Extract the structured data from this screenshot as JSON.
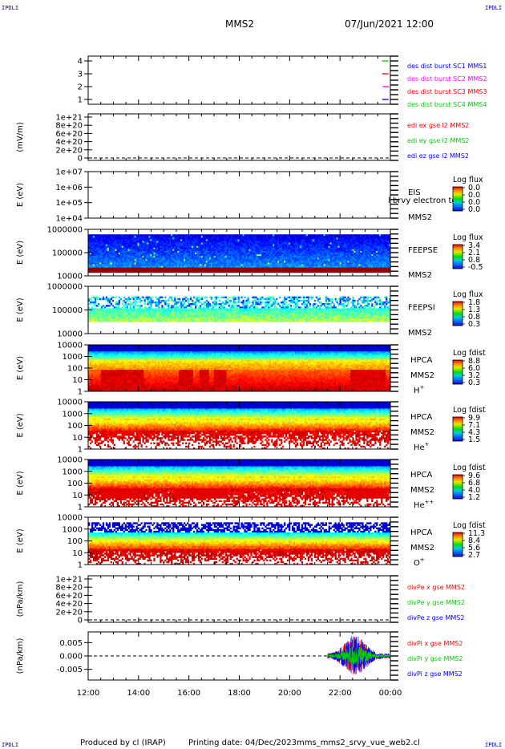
{
  "header": {
    "corner_tl": "IPDLI",
    "corner_tr": "IPDLI",
    "corner_bl": "IPDLI",
    "corner_br": "IPDLI",
    "title": "MMS2",
    "datetime": "07/Jun/2021 12:00"
  },
  "footer": {
    "produced_by": "Produced by cl (IRAP)",
    "printing_date": "Printing date: 04/Dec/2023",
    "filename": "mms_mms2_srvy_vue_web2.cl"
  },
  "x_axis": {
    "ticks": [
      "12:00",
      "14:00",
      "16:00",
      "18:00",
      "20:00",
      "22:00",
      "00:00"
    ],
    "range_hours": [
      12,
      24
    ]
  },
  "chart_data": [
    {
      "id": "dist-burst",
      "type": "line",
      "ylabel": "",
      "yticks": [
        "4",
        "3",
        "2",
        "1"
      ],
      "ylim": [
        0.6,
        4.4
      ],
      "series": [
        {
          "name": "des dist burst SC1 MMS1",
          "color": "#0000ff",
          "level": 4
        },
        {
          "name": "des dist burst SC2 MMS2",
          "color": "#ff00ff",
          "level": 3
        },
        {
          "name": "des dist burst SC3 MMS3",
          "color": "#ff0000",
          "level": 2
        },
        {
          "name": "des dist burst SC4 MMS4",
          "color": "#00cc00",
          "level": 1
        }
      ],
      "marks": [
        {
          "x": 23.8,
          "level": 4,
          "color": "#00cc00"
        },
        {
          "x": 23.8,
          "level": 3,
          "color": "#ff0000"
        },
        {
          "x": 23.82,
          "level": 2,
          "color": "#ff00ff"
        },
        {
          "x": 23.8,
          "level": 1,
          "color": "#0000ff"
        }
      ]
    },
    {
      "id": "edi-e",
      "type": "line",
      "ylabel": "(mV/m)",
      "yticks": [
        "1e+21",
        "8e+20",
        "6e+20",
        "4e+20",
        "2e+20",
        "0"
      ],
      "ylim": [
        -2e+19,
        1.05e+21
      ],
      "series": [
        {
          "name": "edi ex gse l2 MMS2",
          "color": "#ff0000"
        },
        {
          "name": "edi ey gse l2 MMS2",
          "color": "#00cc00"
        },
        {
          "name": "edi ez gse l2 MMS2",
          "color": "#0000ff"
        }
      ],
      "zero_line": true
    },
    {
      "id": "eis",
      "type": "heatmap",
      "ylabel": "E (eV)",
      "yticks": [
        "1e+07",
        "1e+06",
        "1e+05",
        "1e+04"
      ],
      "side_labels": [
        "EIS",
        "MMS2"
      ],
      "overlay_text": "l brvy electron to",
      "colorbar": {
        "title": "Log flux",
        "values": [
          "0.0",
          "0.0",
          "0.0",
          "0.0"
        ]
      },
      "pattern": "empty"
    },
    {
      "id": "feepse",
      "type": "heatmap",
      "ylabel": "E (eV)",
      "yticks": [
        "1000000",
        "100000",
        "10000"
      ],
      "side_labels": [
        "FEEPSE",
        "MMS2"
      ],
      "colorbar": {
        "title": "Log flux",
        "values": [
          "3.4",
          "2.1",
          "0.8",
          "-0.5"
        ]
      },
      "pattern": "feepse"
    },
    {
      "id": "feepsi",
      "type": "heatmap",
      "ylabel": "E (eV)",
      "yticks": [
        "1000000",
        "100000",
        "10000"
      ],
      "side_labels": [
        "FEEPSI",
        "MMS2"
      ],
      "colorbar": {
        "title": "Log flux",
        "values": [
          "1.8",
          "1.3",
          "0.8",
          "0.3"
        ]
      },
      "pattern": "feepsi"
    },
    {
      "id": "hpca-h",
      "type": "heatmap",
      "ylabel": "E (eV)",
      "yticks": [
        "10000",
        "1000",
        "100",
        "10",
        "1"
      ],
      "side_labels": [
        "HPCA",
        "MMS2",
        "H+"
      ],
      "colorbar": {
        "title": "Log fdist",
        "values": [
          "8.8",
          "6.0",
          "3.2",
          "0.3"
        ]
      },
      "pattern": "hpca_h"
    },
    {
      "id": "hpca-he",
      "type": "heatmap",
      "ylabel": "E (eV)",
      "yticks": [
        "10000",
        "1000",
        "100",
        "10",
        "1"
      ],
      "side_labels": [
        "HPCA",
        "MMS2",
        "He+"
      ],
      "colorbar": {
        "title": "Log fdist",
        "values": [
          "9.9",
          "7.1",
          "4.3",
          "1.5"
        ]
      },
      "pattern": "hpca_he"
    },
    {
      "id": "hpca-hepp",
      "type": "heatmap",
      "ylabel": "E (eV)",
      "yticks": [
        "10000",
        "1000",
        "100",
        "10",
        "1"
      ],
      "side_labels": [
        "HPCA",
        "MMS2",
        "He++"
      ],
      "colorbar": {
        "title": "Log fdist",
        "values": [
          "9.6",
          "6.8",
          "4.0",
          "1.2"
        ]
      },
      "pattern": "hpca_hepp"
    },
    {
      "id": "hpca-o",
      "type": "heatmap",
      "ylabel": "E (eV)",
      "yticks": [
        "10000",
        "1000",
        "100",
        "10",
        "1"
      ],
      "side_labels": [
        "HPCA",
        "MMS2",
        "O+"
      ],
      "colorbar": {
        "title": "Log fdist",
        "values": [
          "11.3",
          "8.4",
          "5.6",
          "2.7"
        ]
      },
      "pattern": "hpca_o"
    },
    {
      "id": "divpe",
      "type": "line",
      "ylabel": "(nPa/km)",
      "yticks": [
        "1e+21",
        "8e+20",
        "6e+20",
        "4e+20",
        "2e+20",
        "0"
      ],
      "ylim": [
        -2e+19,
        1.05e+21
      ],
      "series": [
        {
          "name": "divPe x gse MMS2",
          "color": "#ff0000"
        },
        {
          "name": "divPe y gse MMS2",
          "color": "#00cc00"
        },
        {
          "name": "divPe z gse MMS2",
          "color": "#0000ff"
        }
      ],
      "zero_line": true
    },
    {
      "id": "divpi",
      "type": "line",
      "ylabel": "(nPa/km)",
      "yticks": [
        "0.005",
        "0.000",
        "-0.005"
      ],
      "ylim": [
        -0.009,
        0.009
      ],
      "series": [
        {
          "name": "divPi x gse MMS2",
          "color": "#ff0000"
        },
        {
          "name": "divPi y gse MMS2",
          "color": "#00cc00"
        },
        {
          "name": "divPi z gse MMS2",
          "color": "#0000ff"
        }
      ],
      "zero_line": true,
      "activity": {
        "start_hour": 21.5,
        "end_hour": 24,
        "peak_hour": 22.6,
        "peak_amplitude": 0.007
      }
    }
  ],
  "colors": {
    "palette_low": "#0000ff",
    "palette_mid": "#00ff00",
    "palette_high": "#ff0000"
  }
}
